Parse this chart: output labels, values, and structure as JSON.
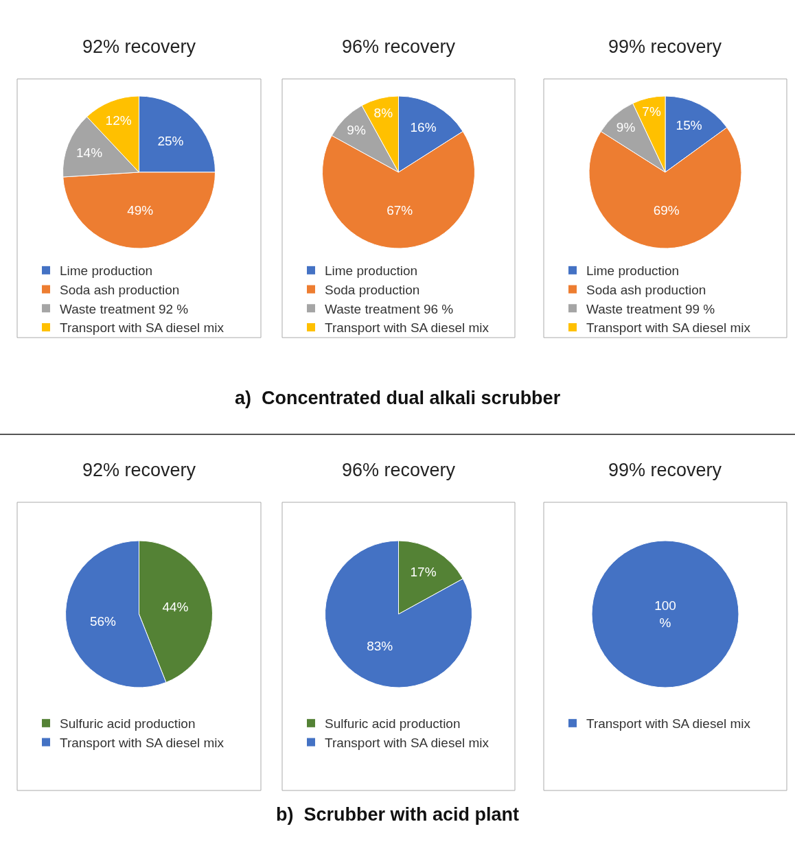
{
  "chart_data": [
    {
      "type": "pie",
      "title": "92% recovery",
      "categories": [
        "Lime production",
        "Soda ash production",
        "Waste treatment 92 %",
        "Transport with SA diesel mix"
      ],
      "values": [
        25,
        49,
        14,
        12
      ],
      "colors": [
        "#4472c4",
        "#ed7d31",
        "#a5a5a5",
        "#ffc000"
      ],
      "value_labels": [
        "25%",
        "49%",
        "14%",
        "12%"
      ],
      "legend": "bottom"
    },
    {
      "type": "pie",
      "title": "96% recovery",
      "categories": [
        "Lime production",
        "Soda production",
        "Waste treatment 96 %",
        "Transport with SA diesel mix"
      ],
      "values": [
        16,
        67,
        9,
        8
      ],
      "colors": [
        "#4472c4",
        "#ed7d31",
        "#a5a5a5",
        "#ffc000"
      ],
      "value_labels": [
        "16%",
        "67%",
        "9%",
        "8%"
      ],
      "legend": "bottom",
      "annotations": [
        "a)  Concentrated dual alkali scrubber"
      ]
    },
    {
      "type": "pie",
      "title": "99% recovery",
      "categories": [
        "Lime production",
        "Soda ash production",
        "Waste treatment 99 %",
        "Transport with SA diesel mix"
      ],
      "values": [
        15,
        69,
        9,
        7
      ],
      "colors": [
        "#4472c4",
        "#ed7d31",
        "#a5a5a5",
        "#ffc000"
      ],
      "value_labels": [
        "15%",
        "69%",
        "9%",
        "7%"
      ],
      "legend": "bottom"
    },
    {
      "type": "pie",
      "title": "92% recovery",
      "categories": [
        "Sulfuric acid production",
        "Transport with SA diesel mix"
      ],
      "values": [
        44,
        56
      ],
      "colors": [
        "#548235",
        "#4472c4"
      ],
      "value_labels": [
        "44%",
        "56%"
      ],
      "legend": "bottom"
    },
    {
      "type": "pie",
      "title": "96% recovery",
      "categories": [
        "Sulfuric acid production",
        "Transport with SA diesel mix"
      ],
      "values": [
        17,
        83
      ],
      "colors": [
        "#548235",
        "#4472c4"
      ],
      "value_labels": [
        "17%",
        "83%"
      ],
      "legend": "bottom",
      "annotations": [
        "b)  Scrubber with acid plant"
      ]
    },
    {
      "type": "pie",
      "title": "99% recovery",
      "categories": [
        "Transport with SA diesel mix"
      ],
      "values": [
        100
      ],
      "colors": [
        "#4472c4"
      ],
      "value_labels": [
        "100\n%"
      ],
      "legend": "bottom"
    }
  ]
}
